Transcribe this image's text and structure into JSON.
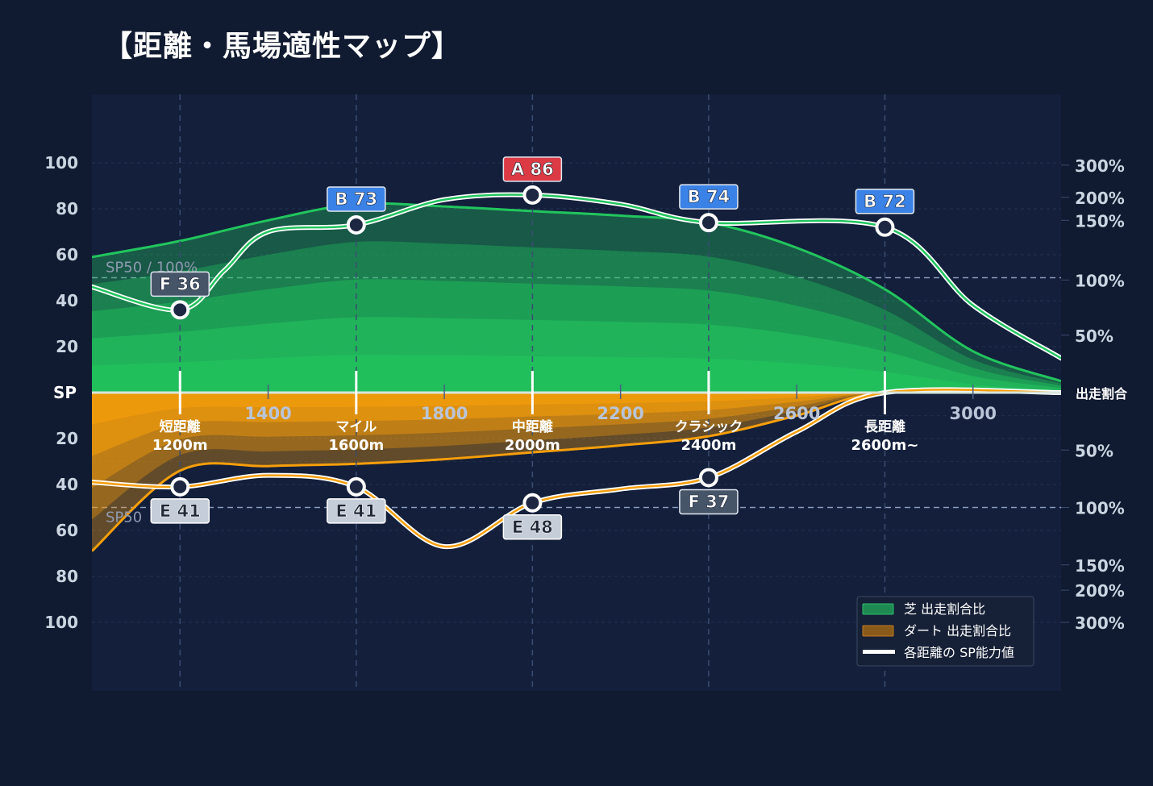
{
  "title": "【距離・馬場適性マップ】",
  "chart_data": {
    "type": "area",
    "title": "【距離・馬場適性マップ】",
    "x_axis": {
      "range": [
        1000,
        3200
      ],
      "ticks": [
        1400,
        1800,
        2200,
        2600,
        3000
      ]
    },
    "y_axis_left": {
      "upper_ticks": [
        "100",
        "80",
        "60",
        "40",
        "20"
      ],
      "upper_values": [
        100,
        80,
        60,
        40,
        20
      ],
      "center_label": "SP",
      "lower_ticks": [
        "20",
        "40",
        "60",
        "80",
        "100"
      ],
      "lower_values": [
        20,
        40,
        60,
        80,
        100
      ],
      "range": [
        0,
        100
      ]
    },
    "y_axis_right": {
      "upper_ticks": [
        "300%",
        "200%",
        "150%",
        "100%",
        "50%"
      ],
      "center_label": "出走割合",
      "lower_ticks": [
        "50%",
        "100%",
        "150%",
        "200%",
        "300%"
      ]
    },
    "reference_line_label_upper": "SP50 / 100%",
    "reference_line_label_lower": "SP50",
    "reference_value": 50,
    "categories": [
      {
        "name": "短距離",
        "dist": "1200m",
        "x": 1200
      },
      {
        "name": "マイル",
        "dist": "1600m",
        "x": 1600
      },
      {
        "name": "中距離",
        "dist": "2000m",
        "x": 2000
      },
      {
        "name": "クラシック",
        "dist": "2400m",
        "x": 2400
      },
      {
        "name": "長距離",
        "dist": "2600m~",
        "x": 2800
      }
    ],
    "series": [
      {
        "name": "芝 出走割合比",
        "surface": "turf",
        "color": "#22c55e",
        "ratio_curve": [
          [
            1000,
            59
          ],
          [
            1200,
            66
          ],
          [
            1400,
            75
          ],
          [
            1600,
            82
          ],
          [
            1800,
            81
          ],
          [
            2000,
            79
          ],
          [
            2200,
            77
          ],
          [
            2400,
            74
          ],
          [
            2600,
            63
          ],
          [
            2800,
            45
          ],
          [
            3000,
            18
          ],
          [
            3200,
            5
          ]
        ],
        "sp_points": [
          {
            "label": "F 36",
            "grade": "F",
            "x": 1200,
            "y": 36
          },
          {
            "label": "B 73",
            "grade": "B",
            "x": 1600,
            "y": 73
          },
          {
            "label": "A 86",
            "grade": "A",
            "x": 2000,
            "y": 86
          },
          {
            "label": "B 74",
            "grade": "B",
            "x": 2400,
            "y": 74
          },
          {
            "label": "B 72",
            "grade": "B",
            "x": 2800,
            "y": 72
          }
        ],
        "sp_curve": [
          [
            1000,
            46
          ],
          [
            1200,
            36
          ],
          [
            1300,
            53
          ],
          [
            1400,
            70
          ],
          [
            1600,
            73
          ],
          [
            1800,
            84
          ],
          [
            2000,
            86
          ],
          [
            2200,
            82
          ],
          [
            2400,
            74
          ],
          [
            2800,
            72
          ],
          [
            3000,
            38
          ],
          [
            3200,
            15
          ]
        ]
      },
      {
        "name": "ダート 出走割合比",
        "surface": "dirt",
        "color": "#f59e0b",
        "ratio_curve": [
          [
            1000,
            69
          ],
          [
            1200,
            34
          ],
          [
            1400,
            32
          ],
          [
            1600,
            31
          ],
          [
            1800,
            29
          ],
          [
            2000,
            26
          ],
          [
            2200,
            23
          ],
          [
            2400,
            19
          ],
          [
            2600,
            10
          ],
          [
            2800,
            0
          ],
          [
            3200,
            0
          ]
        ],
        "sp_points": [
          {
            "label": "E 41",
            "grade": "E",
            "x": 1200,
            "y": 41
          },
          {
            "label": "E 41",
            "grade": "E",
            "x": 1600,
            "y": 41
          },
          {
            "label": "E 48",
            "grade": "E",
            "x": 2000,
            "y": 48
          },
          {
            "label": "F 37",
            "grade": "F",
            "x": 2400,
            "y": 37
          }
        ],
        "sp_curve": [
          [
            1000,
            39
          ],
          [
            1200,
            41
          ],
          [
            1400,
            36
          ],
          [
            1600,
            41
          ],
          [
            1800,
            67
          ],
          [
            2000,
            48
          ],
          [
            2200,
            42
          ],
          [
            2400,
            37
          ],
          [
            2600,
            17
          ],
          [
            2800,
            0
          ],
          [
            3200,
            0
          ]
        ]
      }
    ],
    "legend": {
      "placement": "bottom-right",
      "items": [
        {
          "label": "芝 出走割合比",
          "color": "#1e8a52"
        },
        {
          "label": "ダート 出走割合比",
          "color": "#8a5a1a"
        },
        {
          "label": "各距離の SP能力値",
          "color": "#ffffff"
        }
      ]
    },
    "grade_colors": {
      "A": "#dc3a45",
      "B": "#3b82e6",
      "E": "#c5cdd9",
      "F": "#475569"
    }
  }
}
